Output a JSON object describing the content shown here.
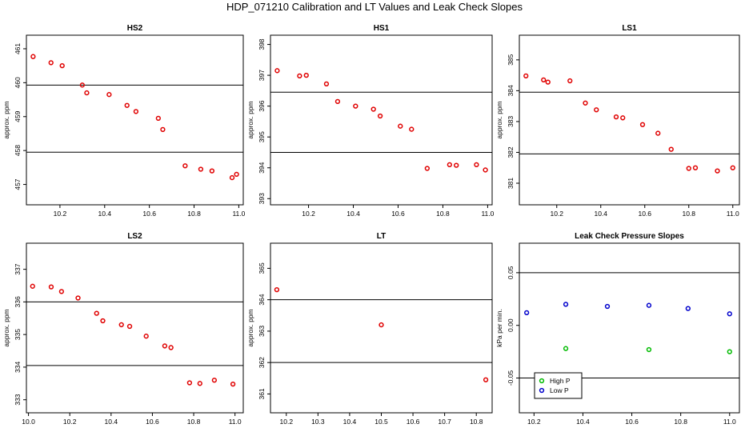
{
  "figure": {
    "title": "HDP_071210  Calibration and LT Values and Leak Check Slopes"
  },
  "colors": {
    "red": "#e00000",
    "green": "#00bb00",
    "blue": "#0000cc",
    "ink": "#000000"
  },
  "chart_data": [
    {
      "type": "scatter",
      "title": "HS2",
      "xlabel": "",
      "ylabel": "approx. ppm",
      "xlim": [
        10.05,
        11.02
      ],
      "ylim": [
        456.4,
        461.4
      ],
      "xticks": [
        10.2,
        10.4,
        10.6,
        10.8,
        11.0
      ],
      "xtick_labels": [
        "10.2",
        "10.4",
        "10.6",
        "10.8",
        "11.0"
      ],
      "yticks": [
        457,
        458,
        459,
        460,
        461
      ],
      "ytick_labels": [
        "457",
        "458",
        "459",
        "460",
        "461"
      ],
      "hlines": [
        459.93,
        457.95
      ],
      "series": [
        {
          "color": "red",
          "x": [
            10.08,
            10.16,
            10.21,
            10.3,
            10.32,
            10.42,
            10.5,
            10.54,
            10.64,
            10.66,
            10.76,
            10.83,
            10.88,
            10.97,
            10.99
          ],
          "y": [
            460.77,
            460.59,
            460.5,
            459.93,
            459.7,
            459.65,
            459.33,
            459.15,
            458.95,
            458.62,
            457.55,
            457.45,
            457.4,
            457.2,
            457.3
          ]
        }
      ]
    },
    {
      "type": "scatter",
      "title": "HS1",
      "xlabel": "",
      "ylabel": "approx. ppm",
      "xlim": [
        10.03,
        11.02
      ],
      "ylim": [
        392.8,
        398.3
      ],
      "xticks": [
        10.2,
        10.4,
        10.6,
        10.8,
        11.0
      ],
      "xtick_labels": [
        "10.2",
        "10.4",
        "10.6",
        "10.8",
        "11.0"
      ],
      "yticks": [
        393,
        394,
        395,
        396,
        397,
        398
      ],
      "ytick_labels": [
        "393",
        "394",
        "395",
        "396",
        "397",
        "398"
      ],
      "hlines": [
        396.45,
        394.5
      ],
      "series": [
        {
          "color": "red",
          "x": [
            10.06,
            10.16,
            10.19,
            10.28,
            10.33,
            10.41,
            10.49,
            10.52,
            10.61,
            10.66,
            10.73,
            10.83,
            10.86,
            10.95,
            10.99
          ],
          "y": [
            397.15,
            396.98,
            397.0,
            396.72,
            396.15,
            396.0,
            395.9,
            395.68,
            395.35,
            395.25,
            393.98,
            394.1,
            394.08,
            394.1,
            393.93
          ]
        }
      ]
    },
    {
      "type": "scatter",
      "title": "LS1",
      "xlabel": "",
      "ylabel": "approx. ppm",
      "xlim": [
        10.03,
        11.03
      ],
      "ylim": [
        380.3,
        385.8
      ],
      "xticks": [
        10.2,
        10.4,
        10.6,
        10.8,
        11.0
      ],
      "xtick_labels": [
        "10.2",
        "10.4",
        "10.6",
        "10.8",
        "11.0"
      ],
      "yticks": [
        381,
        382,
        383,
        384,
        385
      ],
      "ytick_labels": [
        "381",
        "382",
        "383",
        "384",
        "385"
      ],
      "hlines": [
        383.95,
        381.95
      ],
      "series": [
        {
          "color": "red",
          "x": [
            10.06,
            10.14,
            10.16,
            10.26,
            10.33,
            10.38,
            10.47,
            10.5,
            10.59,
            10.66,
            10.72,
            10.8,
            10.83,
            10.93,
            11.0
          ],
          "y": [
            384.48,
            384.35,
            384.28,
            384.32,
            383.6,
            383.38,
            383.15,
            383.12,
            382.9,
            382.62,
            382.1,
            381.48,
            381.5,
            381.4,
            381.5
          ]
        }
      ]
    },
    {
      "type": "scatter",
      "title": "LS2",
      "xlabel": "",
      "ylabel": "approx. ppm",
      "xlim": [
        9.99,
        11.04
      ],
      "ylim": [
        332.6,
        337.8
      ],
      "xticks": [
        10.0,
        10.2,
        10.4,
        10.6,
        10.8,
        11.0
      ],
      "xtick_labels": [
        "10.0",
        "10.2",
        "10.4",
        "10.6",
        "10.8",
        "11.0"
      ],
      "yticks": [
        333,
        334,
        335,
        336,
        337
      ],
      "ytick_labels": [
        "333",
        "334",
        "335",
        "336",
        "337"
      ],
      "hlines": [
        336.0,
        334.05
      ],
      "series": [
        {
          "color": "red",
          "x": [
            10.02,
            10.11,
            10.16,
            10.24,
            10.33,
            10.36,
            10.45,
            10.49,
            10.57,
            10.66,
            10.69,
            10.78,
            10.83,
            10.9,
            10.99
          ],
          "y": [
            336.48,
            336.46,
            336.32,
            336.12,
            335.65,
            335.42,
            335.3,
            335.25,
            334.95,
            334.65,
            334.6,
            333.52,
            333.5,
            333.6,
            333.48
          ]
        }
      ]
    },
    {
      "type": "scatter",
      "title": "LT",
      "xlabel": "",
      "ylabel": "approx. ppm",
      "xlim": [
        10.15,
        10.85
      ],
      "ylim": [
        360.4,
        365.8
      ],
      "xticks": [
        10.2,
        10.3,
        10.4,
        10.5,
        10.6,
        10.7,
        10.8
      ],
      "xtick_labels": [
        "10.2",
        "10.3",
        "10.4",
        "10.5",
        "10.6",
        "10.7",
        "10.8"
      ],
      "yticks": [
        361,
        362,
        363,
        364,
        365
      ],
      "ytick_labels": [
        "361",
        "362",
        "363",
        "364",
        "365"
      ],
      "hlines": [
        364.0,
        362.0
      ],
      "series": [
        {
          "color": "red",
          "x": [
            10.17,
            10.5,
            10.83
          ],
          "y": [
            364.32,
            363.2,
            361.45
          ]
        }
      ]
    },
    {
      "type": "scatter",
      "title": "Leak Check Pressure Slopes",
      "xlabel": "",
      "ylabel": "kPa per min.",
      "xlim": [
        10.14,
        11.04
      ],
      "ylim": [
        -0.083,
        0.078
      ],
      "xticks": [
        10.2,
        10.4,
        10.6,
        10.8,
        11.0
      ],
      "xtick_labels": [
        "10.2",
        "10.4",
        "10.6",
        "10.8",
        "11.0"
      ],
      "yticks": [
        -0.05,
        0.0,
        0.05
      ],
      "ytick_labels": [
        "-0.05",
        "0.00",
        "0.05"
      ],
      "hlines": [
        0.05,
        -0.05
      ],
      "legend": {
        "position": "bottom-left"
      },
      "series": [
        {
          "name": "High P",
          "color": "green",
          "x": [
            10.33,
            10.67,
            11.0
          ],
          "y": [
            -0.022,
            -0.023,
            -0.025
          ]
        },
        {
          "name": "Low P",
          "color": "blue",
          "x": [
            10.17,
            10.33,
            10.5,
            10.67,
            10.83,
            11.0
          ],
          "y": [
            0.012,
            0.02,
            0.018,
            0.019,
            0.016,
            0.011
          ]
        }
      ]
    }
  ]
}
